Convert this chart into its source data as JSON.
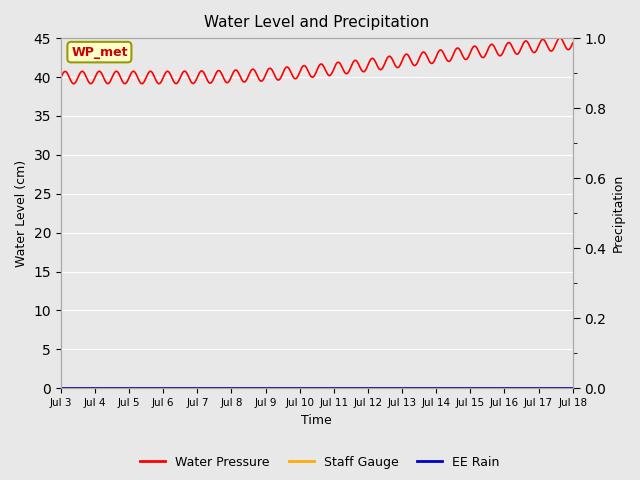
{
  "title": "Water Level and Precipitation",
  "xlabel": "Time",
  "ylabel_left": "Water Level (cm)",
  "ylabel_right": "Precipitation",
  "annotation_text": "WP_met",
  "annotation_bbox_facecolor": "#ffffcc",
  "annotation_bbox_edgecolor": "#999900",
  "left_ylim": [
    0,
    45
  ],
  "right_ylim": [
    0.0,
    1.0
  ],
  "left_yticks": [
    0,
    5,
    10,
    15,
    20,
    25,
    30,
    35,
    40,
    45
  ],
  "right_yticks": [
    0.0,
    0.2,
    0.4,
    0.6,
    0.8,
    1.0
  ],
  "x_tick_labels": [
    "Jul 3",
    "Jul 4",
    "Jul 5",
    "Jul 6",
    "Jul 7",
    "Jul 8",
    "Jul 9",
    "Jul 10",
    "Jul 11",
    "Jul 12",
    "Jul 13",
    "Jul 14",
    "Jul 15",
    "Jul 16",
    "Jul 17",
    "Jul 18"
  ],
  "bg_color": "#e8e8e8",
  "plot_bg_color": "#e8e8e8",
  "grid_color": "#ffffff",
  "water_pressure_color": "#ff0000",
  "staff_gauge_color": "#ffaa00",
  "ee_rain_color": "#0000cc",
  "line_width": 1.2,
  "legend_labels": [
    "Water Pressure",
    "Staff Gauge",
    "EE Rain"
  ]
}
